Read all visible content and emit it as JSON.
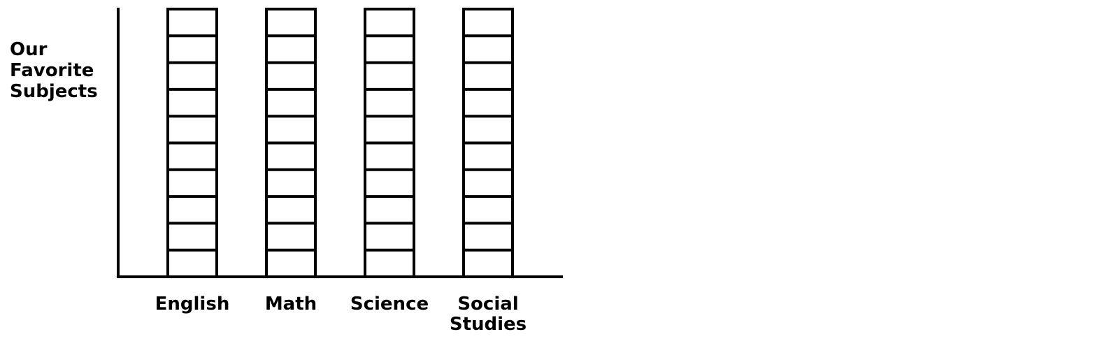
{
  "chart_data": {
    "type": "bar",
    "title": "Our\nFavorite\nSubjects",
    "categories": [
      "English",
      "Math",
      "Science",
      "Social\nStudies"
    ],
    "values": [
      0,
      0,
      0,
      0
    ],
    "ylim": [
      0,
      10
    ],
    "xlabel": "",
    "ylabel": "",
    "grid": false,
    "colors": {
      "stroke": "#000000",
      "background": "#ffffff"
    }
  }
}
